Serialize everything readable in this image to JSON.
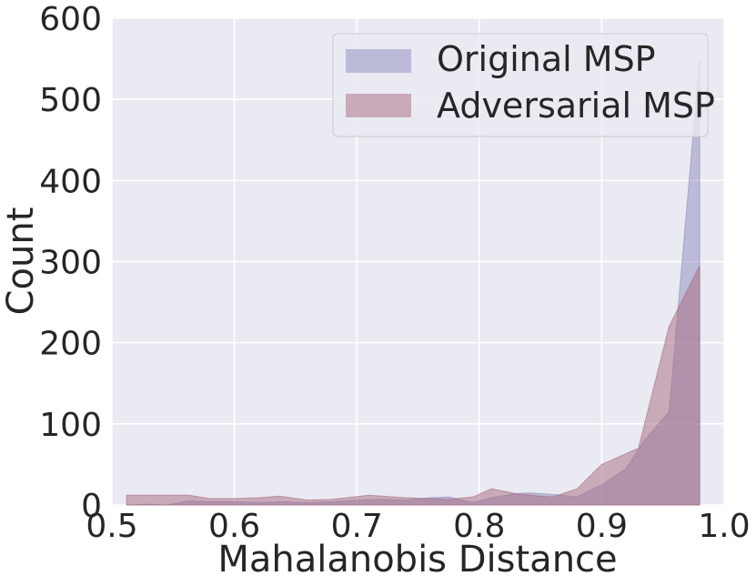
{
  "chart_data": {
    "type": "area",
    "xlabel": "Mahalanobis Distance",
    "ylabel": "Count",
    "xlim": [
      0.5,
      1.0
    ],
    "ylim": [
      0,
      600
    ],
    "xticks": [
      0.5,
      0.6,
      0.7,
      0.8,
      0.9,
      1.0
    ],
    "xtick_labels": [
      "0.5",
      "0.6",
      "0.7",
      "0.8",
      "0.9",
      "1.0"
    ],
    "yticks": [
      0,
      100,
      200,
      300,
      400,
      500,
      600
    ],
    "ytick_labels": [
      "0",
      "100",
      "200",
      "300",
      "400",
      "500",
      "600"
    ],
    "grid": true,
    "legend_position": "top-right",
    "background_color": "#eaeaf2",
    "series": [
      {
        "name": "Original MSP",
        "color": "#8c8cbd",
        "x": [
          0.512,
          0.53,
          0.545,
          0.563,
          0.58,
          0.6,
          0.62,
          0.64,
          0.66,
          0.68,
          0.7,
          0.72,
          0.74,
          0.76,
          0.775,
          0.795,
          0.81,
          0.83,
          0.84,
          0.86,
          0.88,
          0.9,
          0.92,
          0.935,
          0.955,
          0.98
        ],
        "y": [
          0,
          1,
          0,
          5,
          4,
          4,
          3,
          4,
          3,
          4,
          6,
          7,
          6,
          9,
          10,
          3,
          9,
          14,
          15,
          13,
          10,
          25,
          45,
          80,
          115,
          550
        ]
      },
      {
        "name": "Adversarial MSP",
        "color": "#a8697d",
        "x": [
          0.512,
          0.53,
          0.545,
          0.563,
          0.58,
          0.6,
          0.62,
          0.637,
          0.66,
          0.68,
          0.71,
          0.74,
          0.76,
          0.775,
          0.795,
          0.81,
          0.83,
          0.85,
          0.86,
          0.88,
          0.9,
          0.93,
          0.955,
          0.98
        ],
        "y": [
          12,
          12,
          12,
          12,
          8,
          8,
          9,
          11,
          6,
          7,
          12,
          9,
          8,
          7,
          10,
          20,
          14,
          11,
          10,
          20,
          50,
          70,
          220,
          295
        ]
      }
    ]
  }
}
